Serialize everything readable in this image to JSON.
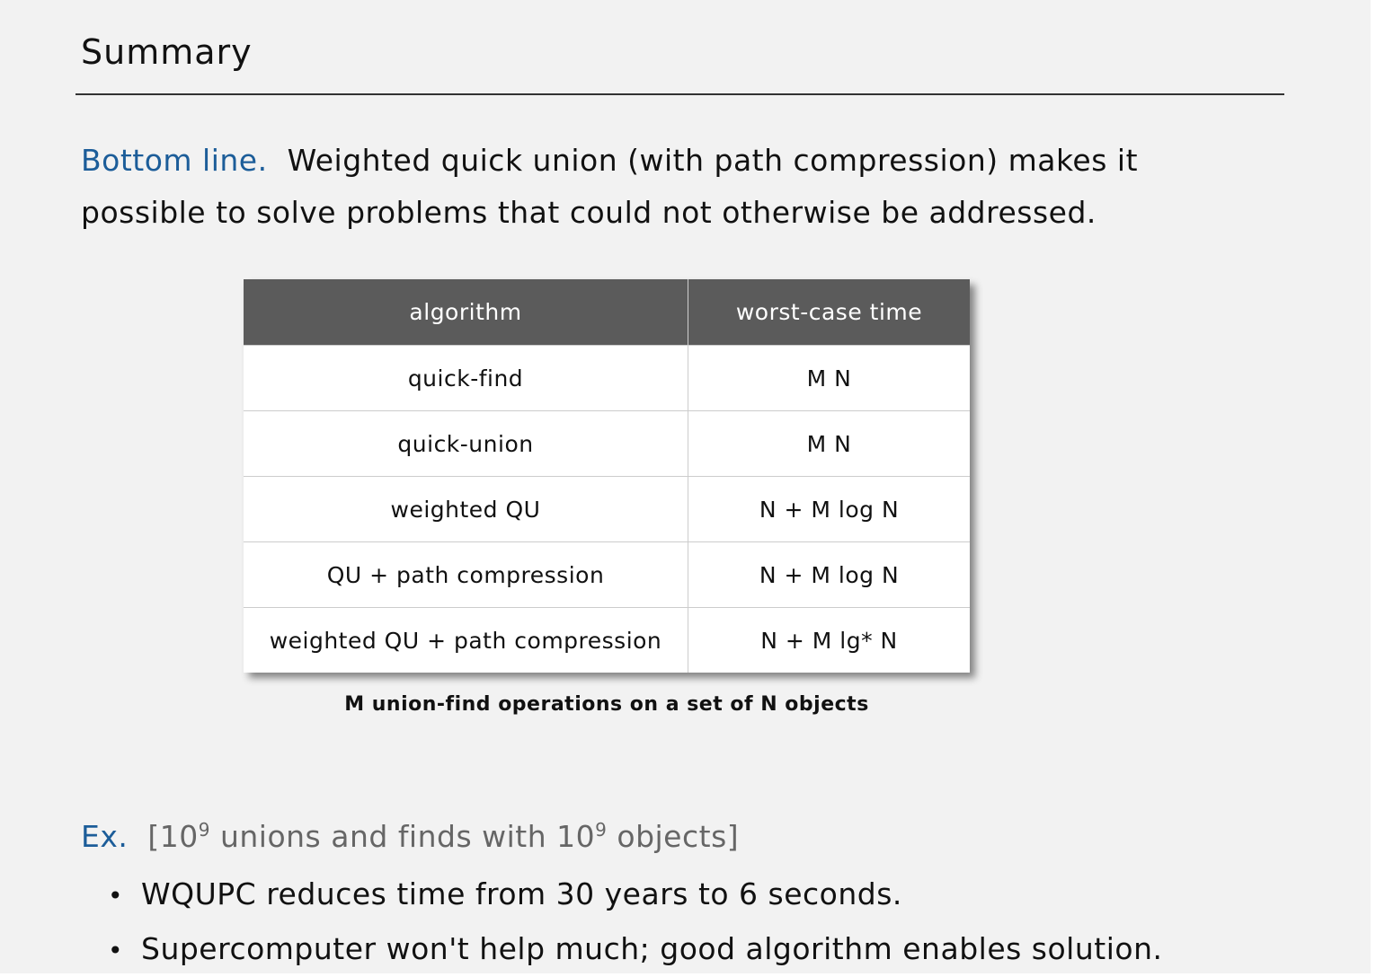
{
  "title": "Summary",
  "bottom_line": {
    "label": "Bottom line.",
    "text": "Weighted quick union (with path compression) makes it possible to solve problems that could not otherwise be addressed."
  },
  "table": {
    "headers": [
      "algorithm",
      "worst-case time"
    ],
    "rows": [
      [
        "quick-find",
        "M N"
      ],
      [
        "quick-union",
        "M N"
      ],
      [
        "weighted QU",
        "N + M log N"
      ],
      [
        "QU + path compression",
        "N + M log N"
      ],
      [
        "weighted QU + path compression",
        "N + M lg* N"
      ]
    ],
    "caption": "M union-find operations on a set of N objects"
  },
  "example": {
    "label": "Ex.",
    "open": "[10",
    "exp1": "9",
    "middle": " unions and finds with 10",
    "exp2": "9",
    "close": " objects]"
  },
  "bullets": [
    "WQUPC reduces time from 30 years to 6 seconds.",
    "Supercomputer won't help much; good algorithm enables solution."
  ],
  "colors": {
    "accent": "#1c5d99",
    "header_bg": "#5b5b5b",
    "slide_bg": "#f2f2f2"
  }
}
